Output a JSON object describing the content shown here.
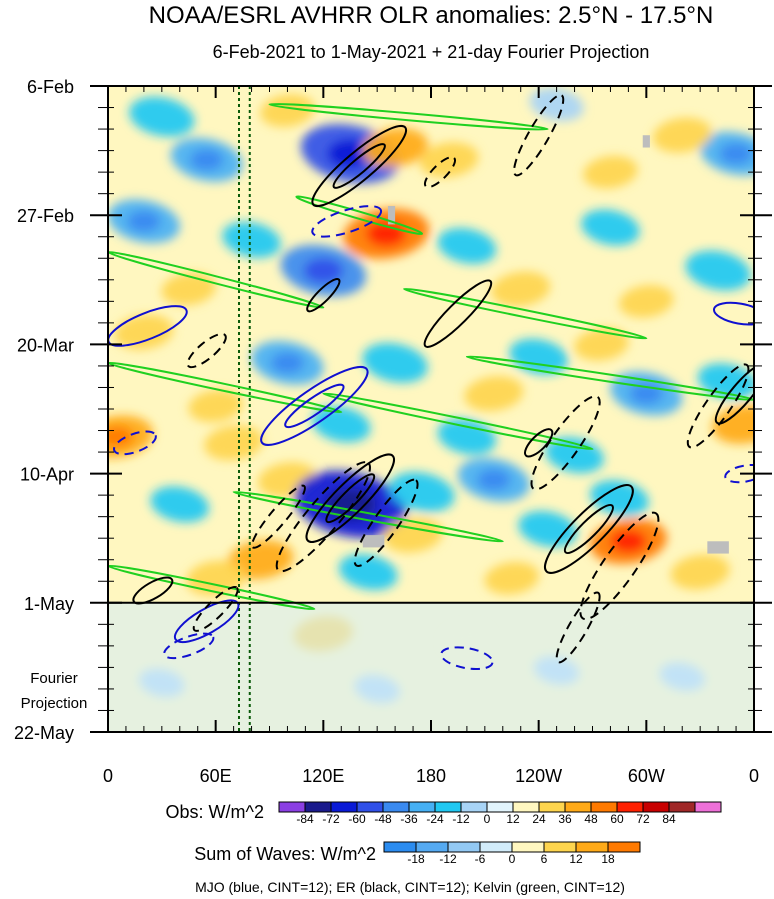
{
  "chart_data": {
    "type": "heatmap",
    "title": "NOAA/ESRL AVHRR OLR anomalies: 2.5°N - 17.5°N",
    "subtitle": "6-Feb-2021 to 1-May-2021 + 21-day Fourier Projection",
    "x_axis": {
      "ticks": [
        {
          "lon": 0,
          "label": "0"
        },
        {
          "lon": 60,
          "label": "60E"
        },
        {
          "lon": 120,
          "label": "120E"
        },
        {
          "lon": 180,
          "label": "180"
        },
        {
          "lon": 240,
          "label": "120W"
        },
        {
          "lon": 300,
          "label": "60W"
        },
        {
          "lon": 360,
          "label": "0"
        }
      ],
      "range": [
        0,
        360
      ]
    },
    "y_axis": {
      "ticks": [
        {
          "day": 0,
          "label": "6-Feb"
        },
        {
          "day": 21,
          "label": "27-Feb"
        },
        {
          "day": 42,
          "label": "20-Mar"
        },
        {
          "day": 63,
          "label": "10-Apr"
        },
        {
          "day": 84,
          "label": "1-May"
        },
        {
          "day": 105,
          "label": "22-May"
        }
      ],
      "range": [
        0,
        105
      ],
      "projection_start_day": 84,
      "projection_label_line1": "Fourier",
      "projection_label_line2": "Projection"
    },
    "reference_lines_lon": [
      73,
      79
    ],
    "obs_colorbar": {
      "label": "Obs: W/m^2",
      "levels": [
        "-84",
        "-72",
        "-60",
        "-48",
        "-36",
        "-24",
        "-12",
        "0",
        "12",
        "24",
        "36",
        "48",
        "60",
        "72",
        "84"
      ],
      "colors": [
        "#8b3fe3",
        "#1a1a8c",
        "#0a1ad6",
        "#3050e8",
        "#3a8af0",
        "#46b0f4",
        "#20c8f2",
        "#a8d4f6",
        "#e2f4fc",
        "#fff7c0",
        "#fed54e",
        "#ffaa18",
        "#ff7a00",
        "#ff2000",
        "#c80000",
        "#a02828",
        "#ee70d8"
      ]
    },
    "waves_colorbar": {
      "label": "Sum of Waves: W/m^2",
      "levels": [
        "-18",
        "-12",
        "-6",
        "0",
        "6",
        "12",
        "18"
      ],
      "colors": [
        "#2b8cf0",
        "#55aaf2",
        "#93c9f4",
        "#d2ecfa",
        "#fff7c0",
        "#fed54e",
        "#ffaa18",
        "#ff7a00"
      ]
    },
    "footer": "MJO (blue, CINT=12); ER (black, CINT=12); Kelvin (green, CINT=12)",
    "contour_colors": {
      "mjo": "#1010d0",
      "er": "#000000",
      "kelvin": "#20d020"
    },
    "anomaly_blobs": [
      {
        "lon": 30,
        "day": 5,
        "value": -30
      },
      {
        "lon": 55,
        "day": 12,
        "value": -36
      },
      {
        "lon": 135,
        "day": 11,
        "value": -60
      },
      {
        "lon": 250,
        "day": 3,
        "value": -20
      },
      {
        "lon": 350,
        "day": 11,
        "value": -36
      },
      {
        "lon": 100,
        "day": 4,
        "value": 20
      },
      {
        "lon": 160,
        "day": 10,
        "value": 30
      },
      {
        "lon": 190,
        "day": 12,
        "value": 24
      },
      {
        "lon": 320,
        "day": 8,
        "value": 24
      },
      {
        "lon": 280,
        "day": 14,
        "value": 20
      },
      {
        "lon": 20,
        "day": 22,
        "value": -36
      },
      {
        "lon": 80,
        "day": 25,
        "value": -24
      },
      {
        "lon": 120,
        "day": 30,
        "value": -48
      },
      {
        "lon": 200,
        "day": 26,
        "value": -24
      },
      {
        "lon": 280,
        "day": 23,
        "value": -24
      },
      {
        "lon": 340,
        "day": 30,
        "value": -30
      },
      {
        "lon": 155,
        "day": 24,
        "value": 48
      },
      {
        "lon": 45,
        "day": 33,
        "value": 20
      },
      {
        "lon": 230,
        "day": 33,
        "value": 24
      },
      {
        "lon": 300,
        "day": 35,
        "value": 20
      },
      {
        "lon": 20,
        "day": 40,
        "value": 24
      },
      {
        "lon": 100,
        "day": 45,
        "value": -36
      },
      {
        "lon": 160,
        "day": 45,
        "value": -30
      },
      {
        "lon": 240,
        "day": 44,
        "value": -24
      },
      {
        "lon": 300,
        "day": 50,
        "value": -36
      },
      {
        "lon": 345,
        "day": 48,
        "value": -24
      },
      {
        "lon": 60,
        "day": 52,
        "value": 20
      },
      {
        "lon": 215,
        "day": 50,
        "value": 24
      },
      {
        "lon": 275,
        "day": 42,
        "value": 20
      },
      {
        "lon": 5,
        "day": 57,
        "value": 36
      },
      {
        "lon": 70,
        "day": 58,
        "value": 24
      },
      {
        "lon": 130,
        "day": 55,
        "value": -24
      },
      {
        "lon": 200,
        "day": 57,
        "value": -24
      },
      {
        "lon": 260,
        "day": 60,
        "value": -24
      },
      {
        "lon": 355,
        "day": 55,
        "value": 30
      },
      {
        "lon": 100,
        "day": 64,
        "value": 24
      },
      {
        "lon": 135,
        "day": 68,
        "value": -72
      },
      {
        "lon": 175,
        "day": 66,
        "value": -30
      },
      {
        "lon": 215,
        "day": 64,
        "value": -36
      },
      {
        "lon": 285,
        "day": 67,
        "value": -24
      },
      {
        "lon": 40,
        "day": 68,
        "value": -24
      },
      {
        "lon": 170,
        "day": 73,
        "value": 24
      },
      {
        "lon": 245,
        "day": 72,
        "value": -24
      },
      {
        "lon": 290,
        "day": 74,
        "value": 40
      },
      {
        "lon": 85,
        "day": 77,
        "value": 30
      },
      {
        "lon": 60,
        "day": 80,
        "value": 24
      },
      {
        "lon": 145,
        "day": 79,
        "value": -24
      },
      {
        "lon": 225,
        "day": 80,
        "value": 20
      },
      {
        "lon": 330,
        "day": 79,
        "value": 24
      },
      {
        "lon": 120,
        "day": 89,
        "value": 24
      },
      {
        "lon": 60,
        "day": 88,
        "value": 12
      },
      {
        "lon": 30,
        "day": 97,
        "value": -12
      },
      {
        "lon": 150,
        "day": 98,
        "value": -12
      },
      {
        "lon": 250,
        "day": 95,
        "value": -12
      },
      {
        "lon": 320,
        "day": 96,
        "value": -12
      },
      {
        "lon": 200,
        "day": 90,
        "value": 12
      },
      {
        "lon": 290,
        "day": 88,
        "value": 12
      }
    ],
    "kelvin_tracks": [
      {
        "lon1": 90,
        "day1": 3,
        "lon2": 245,
        "day2": 7
      },
      {
        "lon1": 105,
        "day1": 18,
        "lon2": 175,
        "day2": 24
      },
      {
        "lon1": 0,
        "day1": 27,
        "lon2": 120,
        "day2": 36
      },
      {
        "lon1": 165,
        "day1": 33,
        "lon2": 300,
        "day2": 41
      },
      {
        "lon1": 0,
        "day1": 45,
        "lon2": 130,
        "day2": 53
      },
      {
        "lon1": 120,
        "day1": 50,
        "lon2": 270,
        "day2": 59
      },
      {
        "lon1": 200,
        "day1": 44,
        "lon2": 360,
        "day2": 51
      },
      {
        "lon1": 70,
        "day1": 66,
        "lon2": 220,
        "day2": 74
      },
      {
        "lon1": 0,
        "day1": 78,
        "lon2": 115,
        "day2": 85
      }
    ],
    "mjo_contours": [
      {
        "lon": 22,
        "day": 39,
        "a": 42,
        "b": 13,
        "angle": -22,
        "dashed": false
      },
      {
        "lon": 115,
        "day": 52,
        "a": 64,
        "b": 16,
        "angle": -35,
        "dashed": false
      },
      {
        "lon": 352,
        "day": 37,
        "a": 26,
        "b": 10,
        "angle": 10,
        "dashed": false
      },
      {
        "lon": 133,
        "day": 22,
        "a": 36,
        "b": 11,
        "angle": -18,
        "dashed": true
      },
      {
        "lon": 55,
        "day": 87,
        "a": 36,
        "b": 12,
        "angle": -30,
        "dashed": false
      },
      {
        "lon": 200,
        "day": 93,
        "a": 26,
        "b": 10,
        "angle": 10,
        "dashed": true
      },
      {
        "lon": 15,
        "day": 58,
        "a": 22,
        "b": 9,
        "angle": -20,
        "dashed": true
      },
      {
        "lon": 355,
        "day": 63,
        "a": 20,
        "b": 8,
        "angle": -10,
        "dashed": true
      },
      {
        "lon": 45,
        "day": 91,
        "a": 26,
        "b": 9,
        "angle": -20,
        "dashed": true
      }
    ],
    "er_contours": [
      {
        "lon": 140,
        "day": 13,
        "a": 60,
        "b": 14,
        "angle": -40,
        "dashed": false
      },
      {
        "lon": 195,
        "day": 37,
        "a": 46,
        "b": 10,
        "angle": -45,
        "dashed": false
      },
      {
        "lon": 135,
        "day": 67,
        "a": 60,
        "b": 15,
        "angle": -45,
        "dashed": false
      },
      {
        "lon": 268,
        "day": 72,
        "a": 60,
        "b": 16,
        "angle": -45,
        "dashed": false
      },
      {
        "lon": 353,
        "day": 50,
        "a": 38,
        "b": 10,
        "angle": -50,
        "dashed": false
      },
      {
        "lon": 240,
        "day": 58,
        "a": 18,
        "b": 7,
        "angle": -45,
        "dashed": false
      },
      {
        "lon": 25,
        "day": 82,
        "a": 22,
        "b": 8,
        "angle": -30,
        "dashed": false
      },
      {
        "lon": 120,
        "day": 34,
        "a": 22,
        "b": 6,
        "angle": -45,
        "dashed": false
      },
      {
        "lon": 240,
        "day": 8,
        "a": 46,
        "b": 10,
        "angle": -60,
        "dashed": true
      },
      {
        "lon": 185,
        "day": 14,
        "a": 20,
        "b": 7,
        "angle": -45,
        "dashed": true
      },
      {
        "lon": 55,
        "day": 43,
        "a": 24,
        "b": 8,
        "angle": -40,
        "dashed": true
      },
      {
        "lon": 255,
        "day": 58,
        "a": 56,
        "b": 14,
        "angle": -55,
        "dashed": true
      },
      {
        "lon": 340,
        "day": 52,
        "a": 50,
        "b": 12,
        "angle": -55,
        "dashed": true
      },
      {
        "lon": 120,
        "day": 70,
        "a": 70,
        "b": 16,
        "angle": -50,
        "dashed": true
      },
      {
        "lon": 155,
        "day": 71,
        "a": 52,
        "b": 12,
        "angle": -55,
        "dashed": true
      },
      {
        "lon": 95,
        "day": 70,
        "a": 40,
        "b": 8,
        "angle": -50,
        "dashed": true
      },
      {
        "lon": 285,
        "day": 78,
        "a": 64,
        "b": 16,
        "angle": -55,
        "dashed": true
      },
      {
        "lon": 262,
        "day": 88,
        "a": 40,
        "b": 9,
        "angle": -60,
        "dashed": true
      },
      {
        "lon": 60,
        "day": 85,
        "a": 30,
        "b": 8,
        "angle": -45,
        "dashed": true
      }
    ],
    "missing_data": [
      {
        "lon": 148,
        "day": 74,
        "w": 12,
        "h": 2
      },
      {
        "lon": 340,
        "day": 75,
        "w": 12,
        "h": 2
      },
      {
        "lon": 158,
        "day": 21,
        "w": 4,
        "h": 3
      },
      {
        "lon": 300,
        "day": 9,
        "w": 4,
        "h": 2
      }
    ]
  }
}
